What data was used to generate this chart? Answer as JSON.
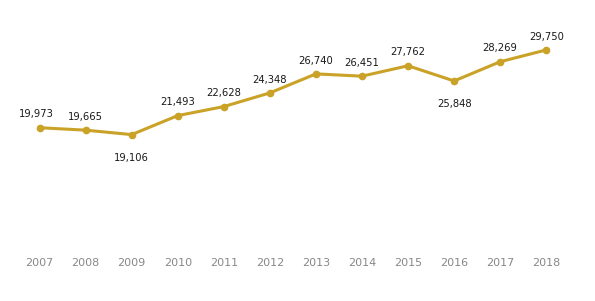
{
  "years": [
    2007,
    2008,
    2009,
    2010,
    2011,
    2012,
    2013,
    2014,
    2015,
    2016,
    2017,
    2018
  ],
  "values": [
    19973,
    19665,
    19106,
    21493,
    22628,
    24348,
    26740,
    26451,
    27762,
    25848,
    28269,
    29750
  ],
  "labels": [
    "19,973",
    "19,665",
    "19,106",
    "21,493",
    "22,628",
    "24,348",
    "26,740",
    "26,451",
    "27,762",
    "25,848",
    "28,269",
    "29,750"
  ],
  "line_color": "#C9A227",
  "marker_color": "#C9A227",
  "background_color": "#FFFFFF",
  "grid_color": "#E5E5E5",
  "label_color": "#1a1a1a",
  "tick_color": "#888888",
  "ylim": [
    5000,
    33000
  ],
  "label_fontsize": 7.2,
  "tick_fontsize": 8.0,
  "line_width": 2.2,
  "marker_size": 4.5
}
